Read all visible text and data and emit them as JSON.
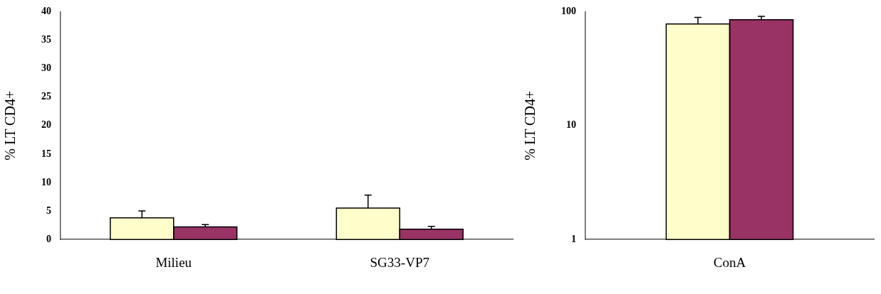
{
  "chart_data": [
    {
      "type": "bar",
      "ylabel": "% LT CD4+",
      "categories": [
        "Milieu",
        "SG33-VP7"
      ],
      "series": [
        {
          "color": "#ffffcc",
          "values": [
            3.8,
            5.5
          ],
          "errors": [
            1.2,
            2.3
          ]
        },
        {
          "color": "#993366",
          "values": [
            2.2,
            1.8
          ],
          "errors": [
            0.4,
            0.5
          ]
        }
      ],
      "ylim": [
        0,
        40
      ],
      "yticks": [
        0,
        5,
        10,
        15,
        20,
        25,
        30,
        35,
        40
      ],
      "grid": false,
      "legend": false
    },
    {
      "type": "bar",
      "ylabel": "% LT CD4+",
      "categories": [
        "ConA"
      ],
      "series": [
        {
          "color": "#ffffcc",
          "values": [
            78
          ],
          "errors": [
            11
          ]
        },
        {
          "color": "#993366",
          "values": [
            85
          ],
          "errors": [
            6
          ]
        }
      ],
      "log": true,
      "ylim": [
        1,
        100
      ],
      "yticks": [
        1,
        10,
        100
      ],
      "grid": false,
      "legend": false
    }
  ]
}
